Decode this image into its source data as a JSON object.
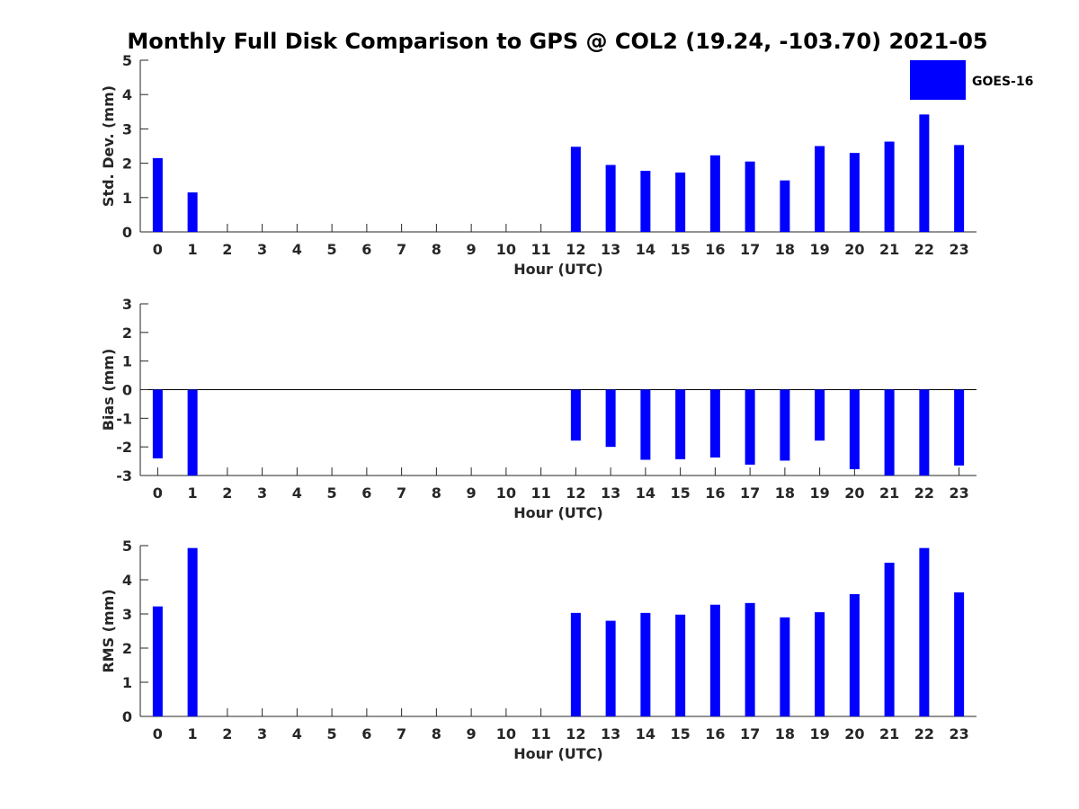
{
  "title": "Monthly Full Disk Comparison to GPS @ COL2 (19.24, -103.70) 2021-05",
  "colors": {
    "bar": "#0000ff",
    "axis": "#262626",
    "background": "#ffffff"
  },
  "legend": {
    "label": "GOES-16",
    "placement": "top-right"
  },
  "chart_data": [
    {
      "type": "bar",
      "xlabel": "Hour (UTC)",
      "ylabel": "Std. Dev. (mm)",
      "ylim": [
        0,
        5
      ],
      "yticks": [
        0,
        1,
        2,
        3,
        4,
        5
      ],
      "categories": [
        "0",
        "1",
        "2",
        "3",
        "4",
        "5",
        "6",
        "7",
        "8",
        "9",
        "10",
        "11",
        "12",
        "13",
        "14",
        "15",
        "16",
        "17",
        "18",
        "19",
        "20",
        "21",
        "22",
        "23"
      ],
      "series": [
        {
          "name": "GOES-16",
          "values": [
            2.15,
            1.15,
            null,
            null,
            null,
            null,
            null,
            null,
            null,
            null,
            null,
            null,
            2.48,
            1.95,
            1.78,
            1.73,
            2.23,
            2.05,
            1.5,
            2.5,
            2.3,
            2.63,
            3.42,
            2.53
          ]
        }
      ]
    },
    {
      "type": "bar",
      "xlabel": "Hour (UTC)",
      "ylabel": "Bias (mm)",
      "ylim": [
        -3,
        3
      ],
      "yticks": [
        -3,
        -2,
        -1,
        0,
        1,
        2,
        3
      ],
      "categories": [
        "0",
        "1",
        "2",
        "3",
        "4",
        "5",
        "6",
        "7",
        "8",
        "9",
        "10",
        "11",
        "12",
        "13",
        "14",
        "15",
        "16",
        "17",
        "18",
        "19",
        "20",
        "21",
        "22",
        "23"
      ],
      "series": [
        {
          "name": "GOES-16",
          "values": [
            -2.4,
            -3.0,
            null,
            null,
            null,
            null,
            null,
            null,
            null,
            null,
            null,
            null,
            -1.78,
            -2.0,
            -2.45,
            -2.43,
            -2.37,
            -2.62,
            -2.48,
            -1.78,
            -2.78,
            -3.0,
            -3.0,
            -2.65
          ]
        }
      ]
    },
    {
      "type": "bar",
      "xlabel": "Hour (UTC)",
      "ylabel": "RMS (mm)",
      "ylim": [
        0,
        5
      ],
      "yticks": [
        0,
        1,
        2,
        3,
        4,
        5
      ],
      "categories": [
        "0",
        "1",
        "2",
        "3",
        "4",
        "5",
        "6",
        "7",
        "8",
        "9",
        "10",
        "11",
        "12",
        "13",
        "14",
        "15",
        "16",
        "17",
        "18",
        "19",
        "20",
        "21",
        "22",
        "23"
      ],
      "series": [
        {
          "name": "GOES-16",
          "values": [
            3.22,
            4.93,
            null,
            null,
            null,
            null,
            null,
            null,
            null,
            null,
            null,
            null,
            3.03,
            2.8,
            3.03,
            2.98,
            3.27,
            3.32,
            2.9,
            3.05,
            3.58,
            4.5,
            4.93,
            3.63
          ]
        }
      ]
    }
  ]
}
